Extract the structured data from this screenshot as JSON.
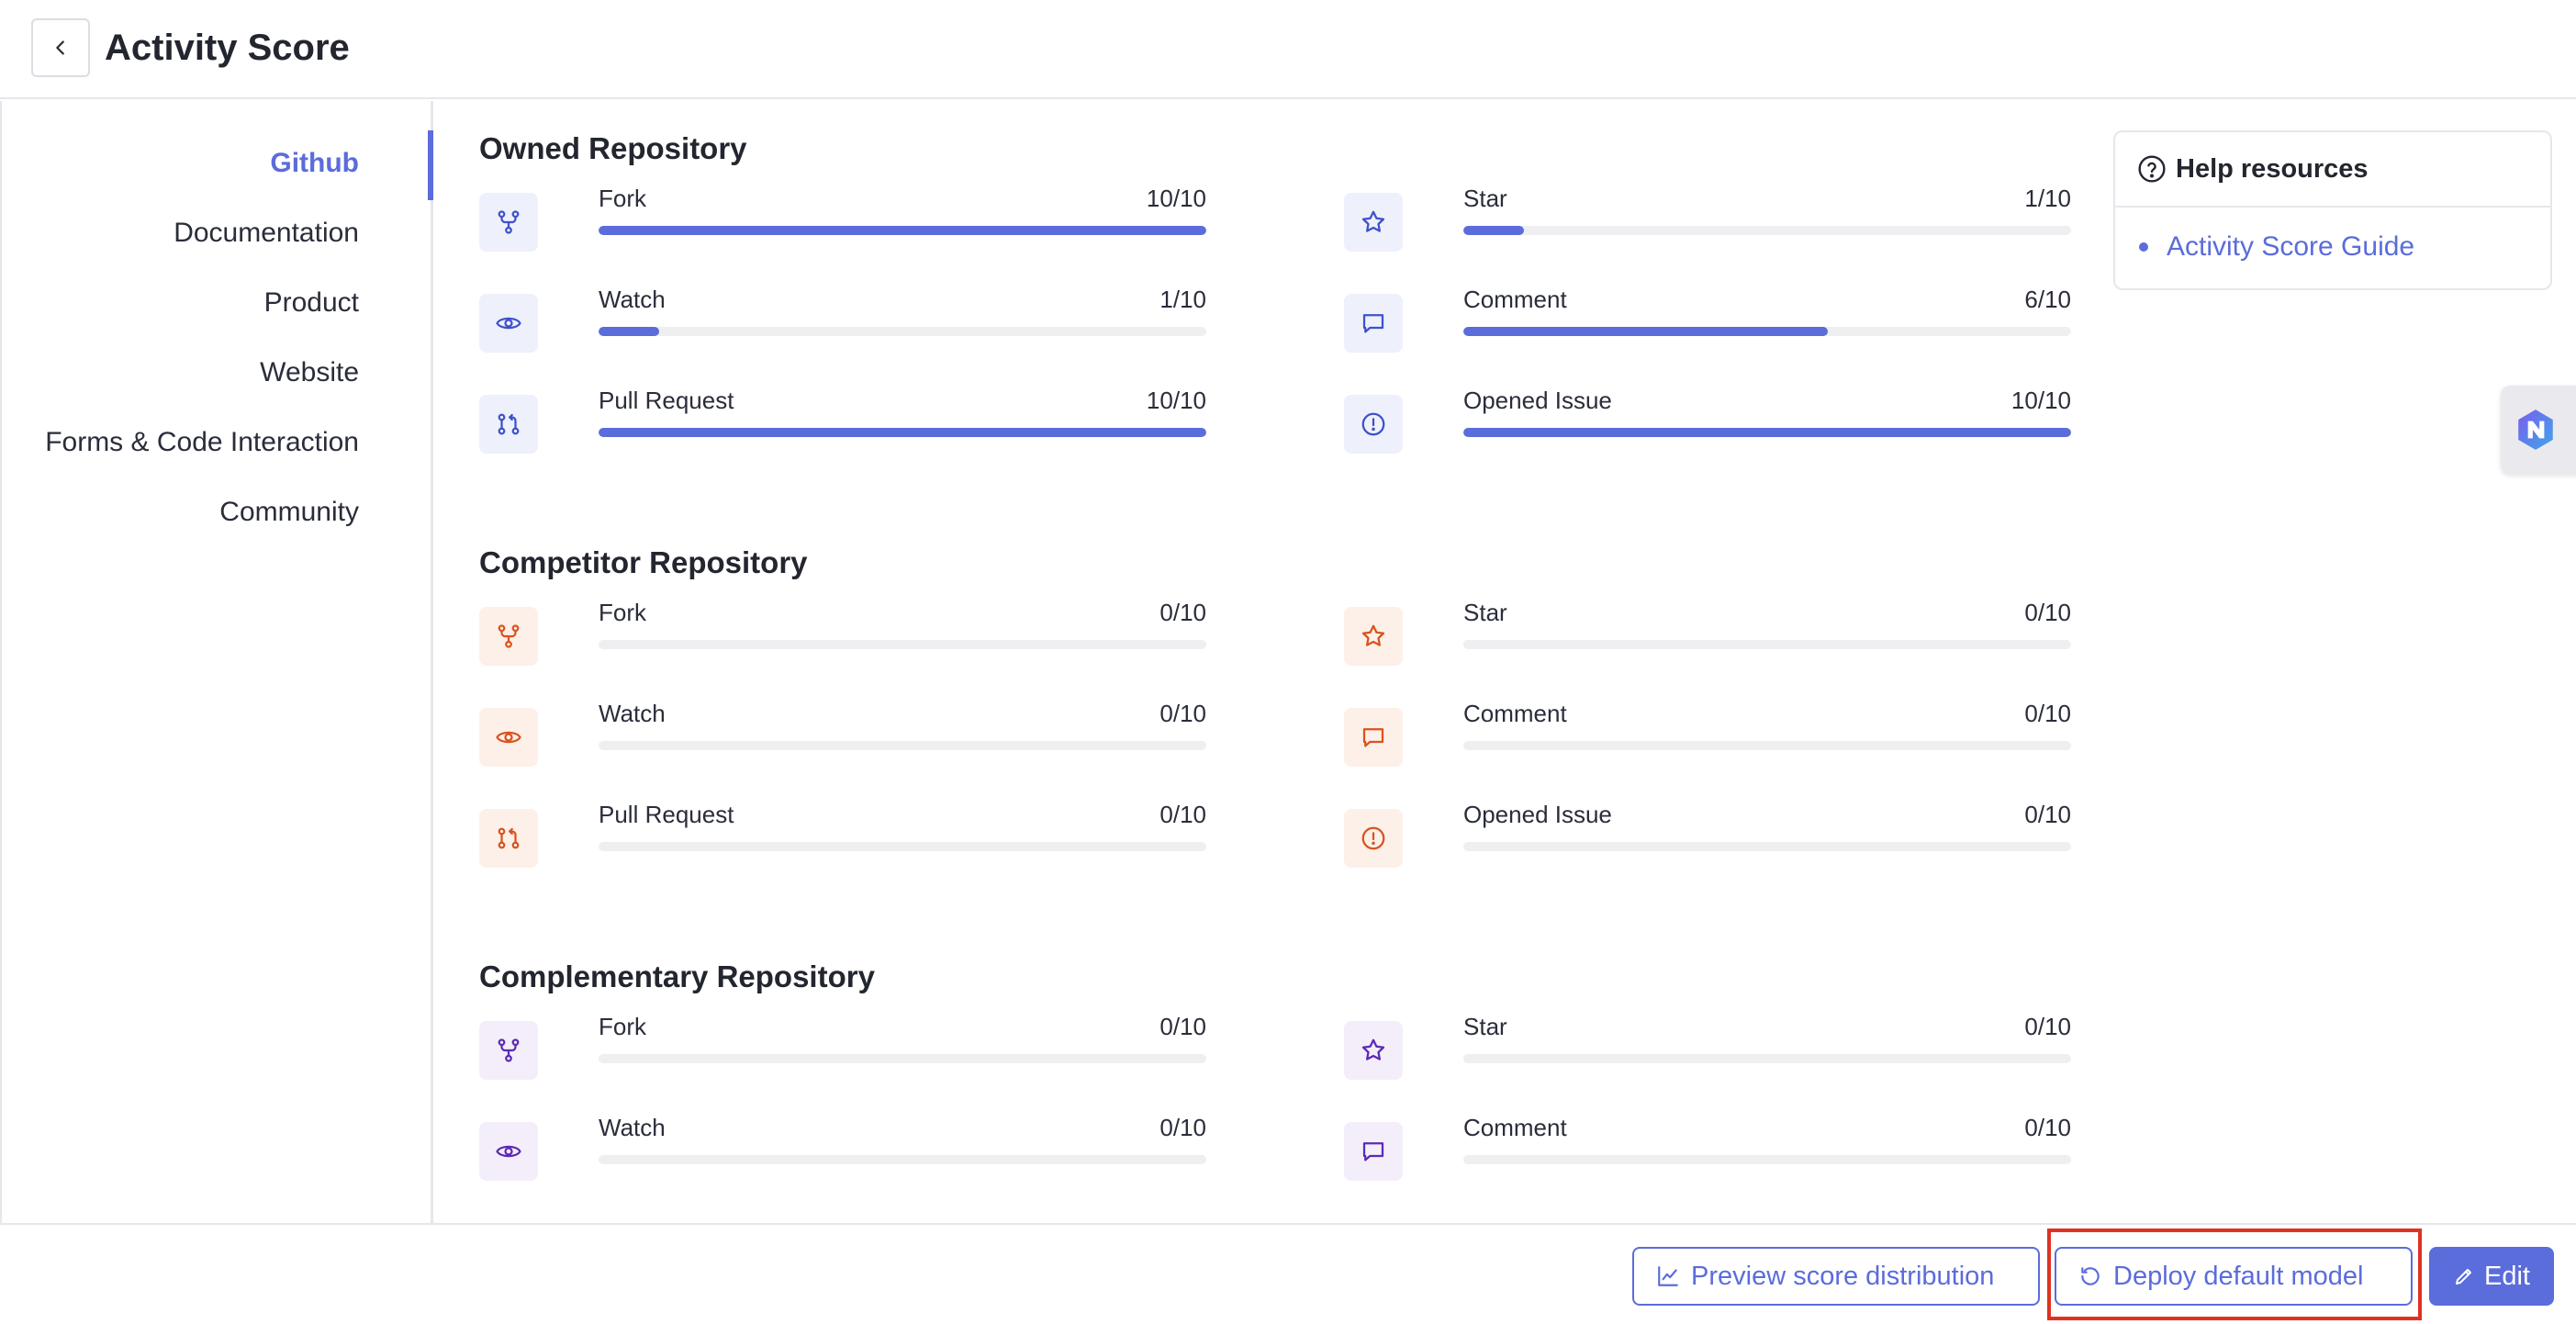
{
  "header": {
    "title": "Activity Score"
  },
  "sidebar": {
    "items": [
      {
        "label": "Github",
        "active": true
      },
      {
        "label": "Documentation",
        "active": false
      },
      {
        "label": "Product",
        "active": false
      },
      {
        "label": "Website",
        "active": false
      },
      {
        "label": "Forms & Code Interaction",
        "active": false
      },
      {
        "label": "Community",
        "active": false
      }
    ]
  },
  "sections": [
    {
      "title": "Owned Repository",
      "theme": "blue",
      "metrics": [
        {
          "label": "Fork",
          "score": "10/10",
          "value": 10,
          "max": 10,
          "icon": "fork-icon"
        },
        {
          "label": "Star",
          "score": "1/10",
          "value": 1,
          "max": 10,
          "icon": "star-icon"
        },
        {
          "label": "Watch",
          "score": "1/10",
          "value": 1,
          "max": 10,
          "icon": "eye-icon"
        },
        {
          "label": "Comment",
          "score": "6/10",
          "value": 6,
          "max": 10,
          "icon": "comment-icon"
        },
        {
          "label": "Pull Request",
          "score": "10/10",
          "value": 10,
          "max": 10,
          "icon": "pull-request-icon"
        },
        {
          "label": "Opened Issue",
          "score": "10/10",
          "value": 10,
          "max": 10,
          "icon": "issue-icon"
        }
      ]
    },
    {
      "title": "Competitor Repository",
      "theme": "orange",
      "metrics": [
        {
          "label": "Fork",
          "score": "0/10",
          "value": 0,
          "max": 10,
          "icon": "fork-icon"
        },
        {
          "label": "Star",
          "score": "0/10",
          "value": 0,
          "max": 10,
          "icon": "star-icon"
        },
        {
          "label": "Watch",
          "score": "0/10",
          "value": 0,
          "max": 10,
          "icon": "eye-icon"
        },
        {
          "label": "Comment",
          "score": "0/10",
          "value": 0,
          "max": 10,
          "icon": "comment-icon"
        },
        {
          "label": "Pull Request",
          "score": "0/10",
          "value": 0,
          "max": 10,
          "icon": "pull-request-icon"
        },
        {
          "label": "Opened Issue",
          "score": "0/10",
          "value": 0,
          "max": 10,
          "icon": "issue-icon"
        }
      ]
    },
    {
      "title": "Complementary Repository",
      "theme": "purple",
      "metrics": [
        {
          "label": "Fork",
          "score": "0/10",
          "value": 0,
          "max": 10,
          "icon": "fork-icon"
        },
        {
          "label": "Star",
          "score": "0/10",
          "value": 0,
          "max": 10,
          "icon": "star-icon"
        },
        {
          "label": "Watch",
          "score": "0/10",
          "value": 0,
          "max": 10,
          "icon": "eye-icon"
        },
        {
          "label": "Comment",
          "score": "0/10",
          "value": 0,
          "max": 10,
          "icon": "comment-icon"
        }
      ]
    }
  ],
  "help": {
    "title": "Help resources",
    "links": [
      "Activity Score Guide"
    ]
  },
  "footer": {
    "preview_label": "Preview score distribution",
    "deploy_label": "Deploy default model",
    "edit_label": "Edit"
  },
  "colors": {
    "accent": "#5b6cdb",
    "blue_icon": "#3f51c9",
    "orange_icon": "#d9531e",
    "purple_icon": "#5a2bb3",
    "highlight": "#e03222"
  }
}
